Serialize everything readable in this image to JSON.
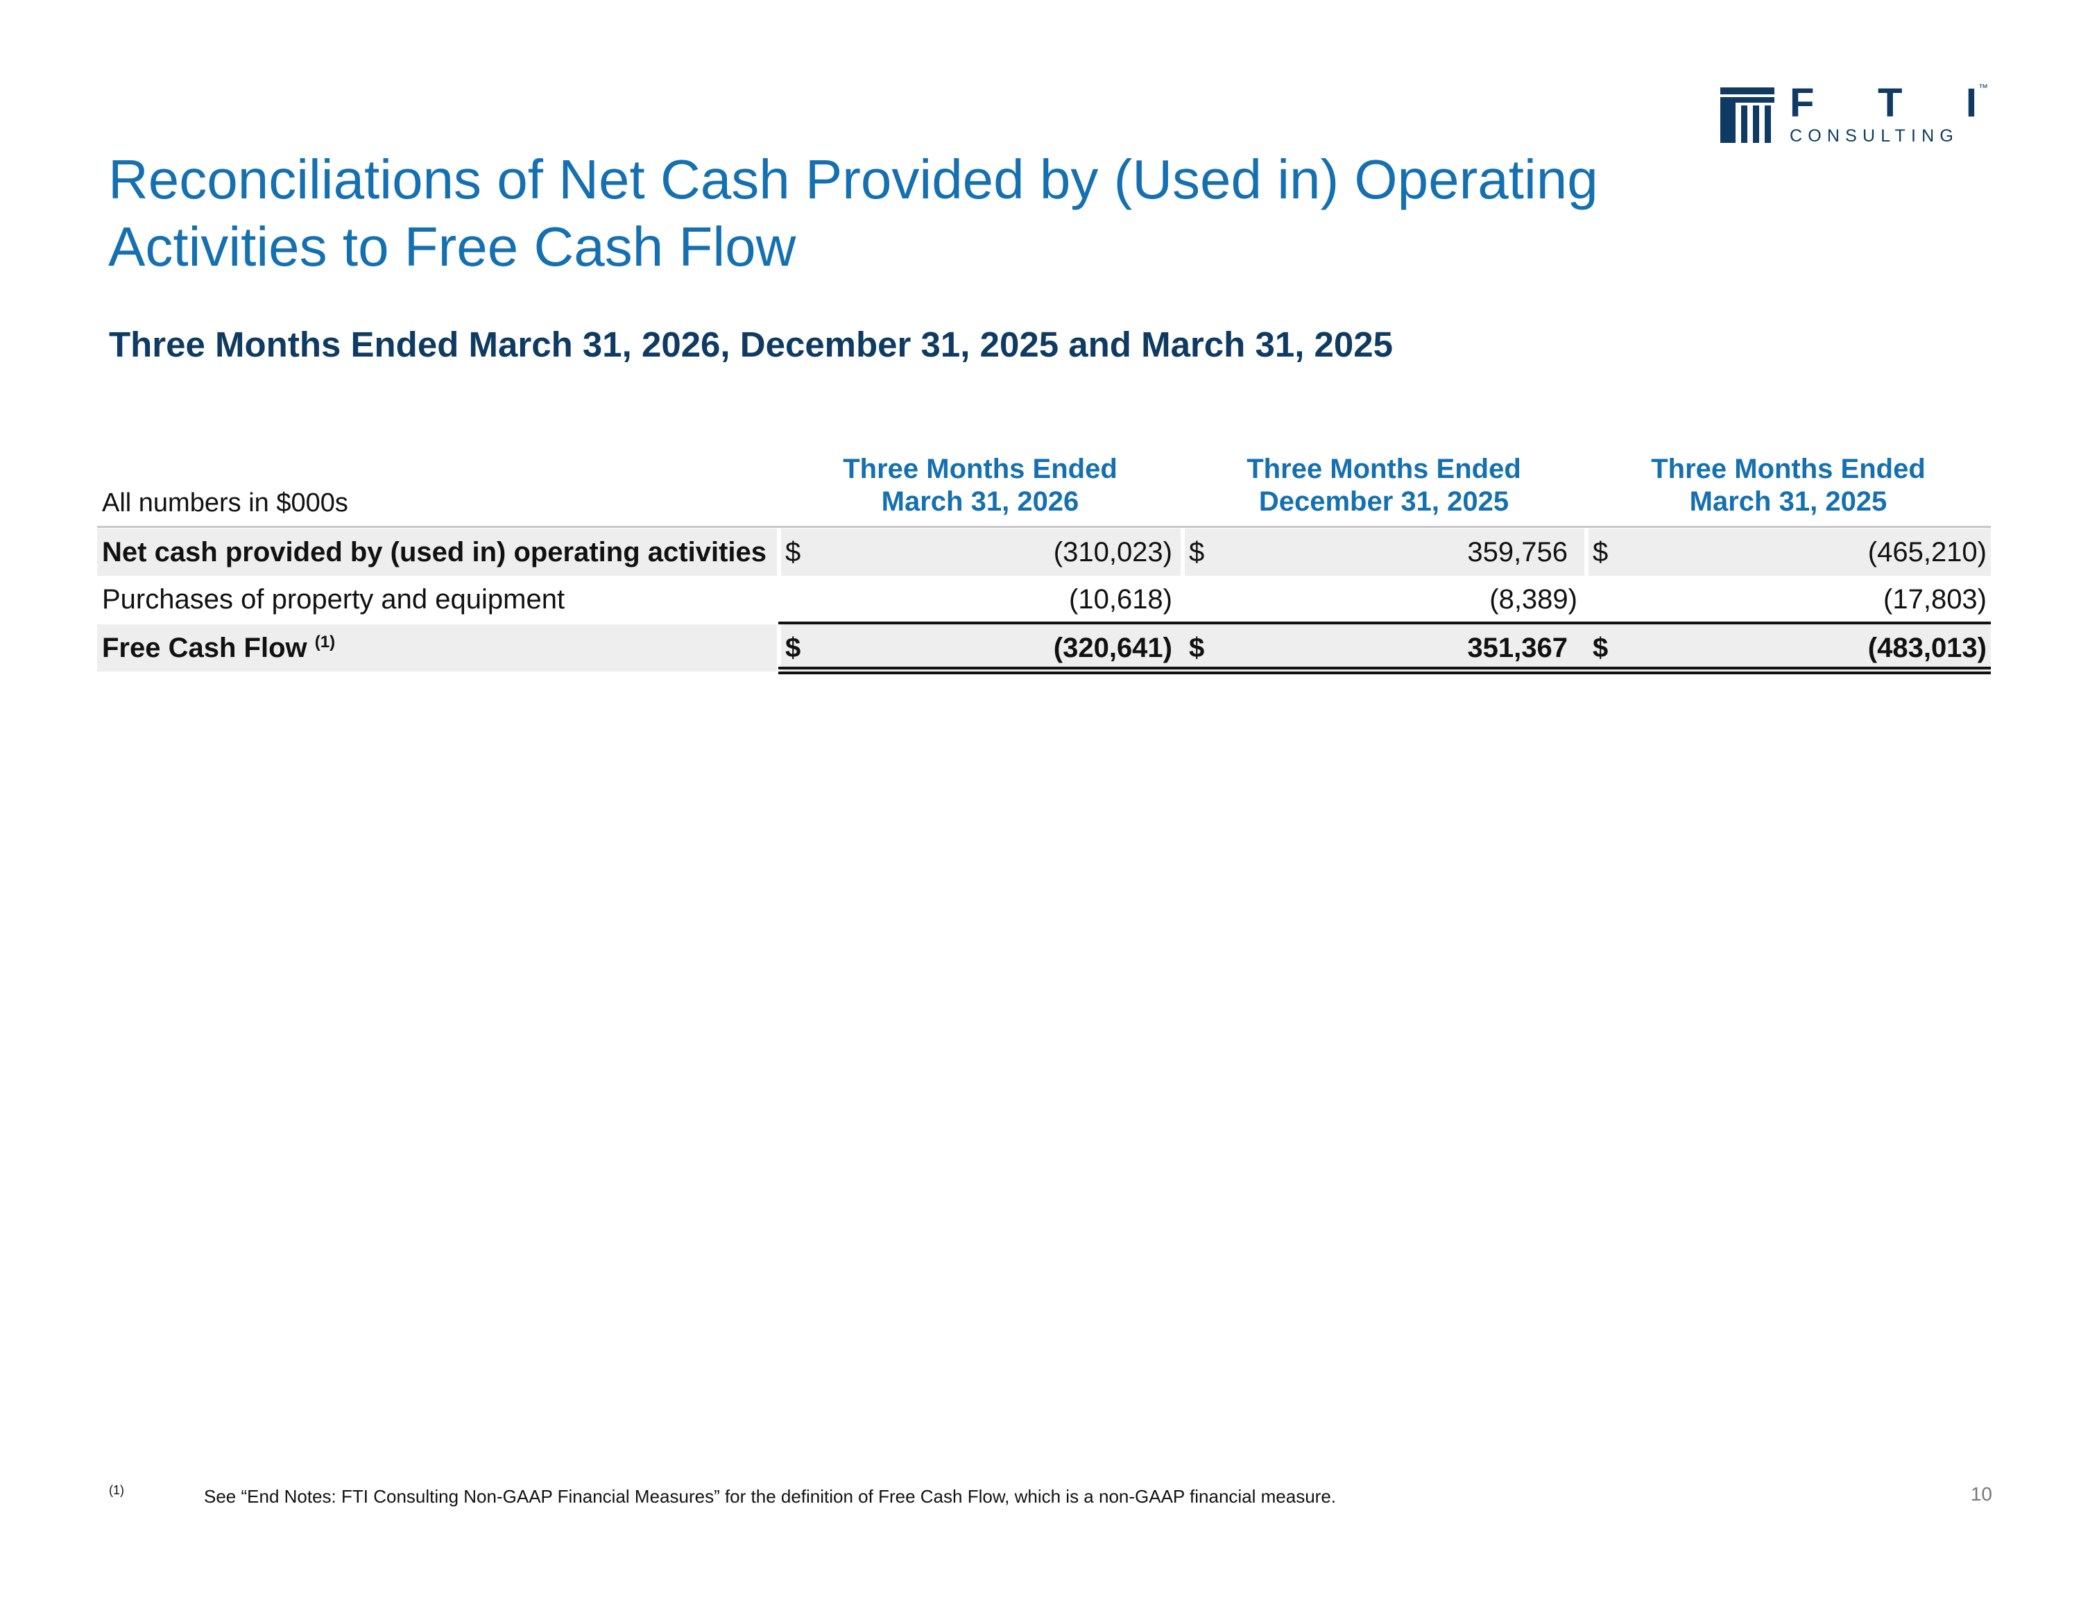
{
  "logo": {
    "letters": [
      "F",
      "T",
      "I"
    ],
    "trademark": "™",
    "subtext": "CONSULTING",
    "colors": {
      "brand_navy": "#0f3a62"
    }
  },
  "title": "Reconciliations of Net Cash Provided by (Used in) Operating Activities to Free Cash Flow",
  "subtitle": "Three Months Ended March 31, 2026, December 31, 2025 and March 31, 2025",
  "table": {
    "units_label": "All numbers in $000s",
    "columns": [
      {
        "line1": "Three Months Ended",
        "line2": "March 31, 2026"
      },
      {
        "line1": "Three Months Ended",
        "line2": "December 31, 2025"
      },
      {
        "line1": "Three Months Ended",
        "line2": "March 31, 2025"
      }
    ],
    "rows": [
      {
        "label": "Net cash provided by (used in) operating activities",
        "currency": [
          "$",
          "$",
          "$"
        ],
        "values": [
          "(310,023)",
          "359,756",
          "(465,210)"
        ]
      },
      {
        "label": "Purchases of property and equipment",
        "values": [
          "(10,618)",
          "(8,389)",
          "(17,803)"
        ]
      },
      {
        "label": "Free Cash Flow",
        "footnote_ref": "(1)",
        "currency": [
          "$",
          "$",
          "$"
        ],
        "values": [
          "(320,641)",
          "351,367",
          "(483,013)"
        ]
      }
    ]
  },
  "footnote": {
    "marker": "(1)",
    "text": "See “End Notes: FTI Consulting Non-GAAP Financial Measures” for the definition of Free Cash Flow, which is a non-GAAP financial measure."
  },
  "page_number": "10",
  "colors": {
    "title_blue": "#1470b0",
    "heading_navy": "#0f3a62",
    "row_shade": "#eeeeee"
  }
}
